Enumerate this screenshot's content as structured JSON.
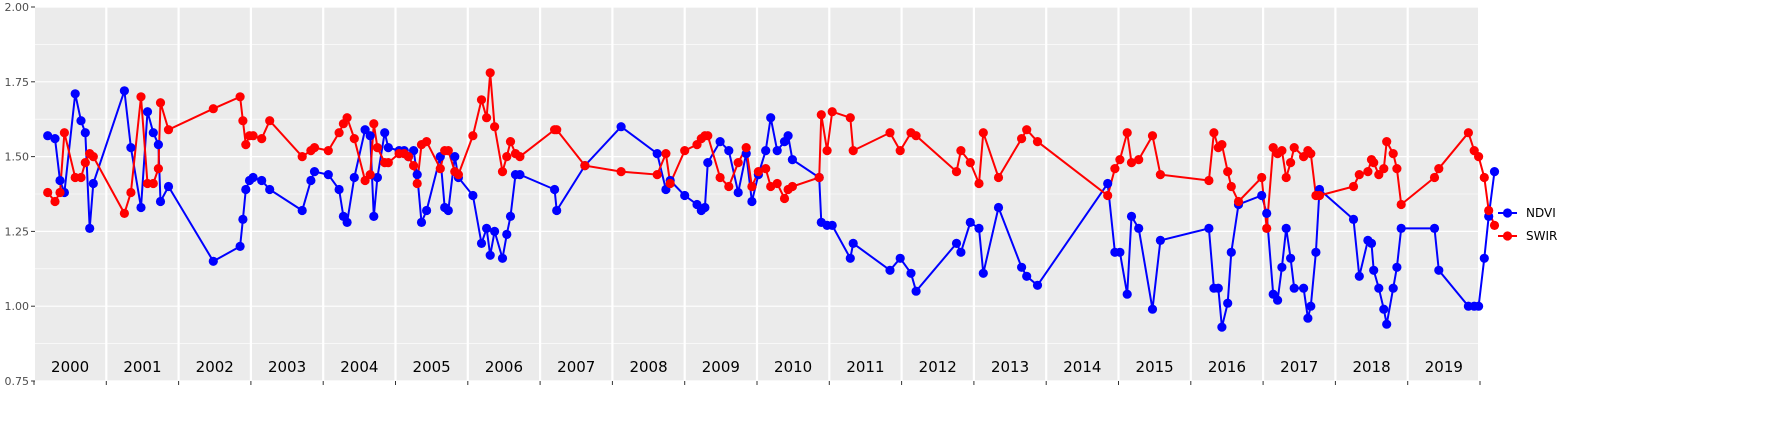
{
  "colors": {
    "panel_bg": "#EBEBEB",
    "grid": "#FFFFFF",
    "ndvi": "#0000FF",
    "swir": "#FF0000",
    "axis_text": "#4D4D4D"
  },
  "chart_data": {
    "type": "line",
    "title": "",
    "xlabel": "",
    "ylabel": "",
    "ylim": [
      0.75,
      2.0
    ],
    "xlim": [
      2000.0,
      2020.0
    ],
    "yticks": [
      "0.75",
      "1.00",
      "1.25",
      "1.50",
      "1.75",
      "2.00"
    ],
    "year_labels": [
      "2000",
      "2001",
      "2002",
      "2003",
      "2004",
      "2005",
      "2006",
      "2007",
      "2008",
      "2009",
      "2010",
      "2011",
      "2012",
      "2013",
      "2014",
      "2015",
      "2016",
      "2017",
      "2018",
      "2019"
    ],
    "grid": true,
    "legend_position": "right",
    "series": [
      {
        "name": "NDVI",
        "color": "#0000FF",
        "points": [
          [
            2000.19,
            1.57
          ],
          [
            2000.29,
            1.56
          ],
          [
            2000.36,
            1.42
          ],
          [
            2000.42,
            1.38
          ],
          [
            2000.57,
            1.71
          ],
          [
            2000.65,
            1.62
          ],
          [
            2000.71,
            1.58
          ],
          [
            2000.77,
            1.26
          ],
          [
            2000.82,
            1.41
          ],
          [
            2001.25,
            1.72
          ],
          [
            2001.34,
            1.53
          ],
          [
            2001.48,
            1.33
          ],
          [
            2001.57,
            1.65
          ],
          [
            2001.65,
            1.58
          ],
          [
            2001.72,
            1.54
          ],
          [
            2001.75,
            1.35
          ],
          [
            2001.86,
            1.4
          ],
          [
            2002.48,
            1.15
          ],
          [
            2002.85,
            1.2
          ],
          [
            2002.89,
            1.29
          ],
          [
            2002.93,
            1.39
          ],
          [
            2002.98,
            1.42
          ],
          [
            2003.03,
            1.43
          ],
          [
            2003.15,
            1.42
          ],
          [
            2003.26,
            1.39
          ],
          [
            2003.71,
            1.32
          ],
          [
            2003.83,
            1.42
          ],
          [
            2003.88,
            1.45
          ],
          [
            2004.07,
            1.44
          ],
          [
            2004.22,
            1.39
          ],
          [
            2004.28,
            1.3
          ],
          [
            2004.33,
            1.28
          ],
          [
            2004.43,
            1.43
          ],
          [
            2004.58,
            1.59
          ],
          [
            2004.65,
            1.57
          ],
          [
            2004.7,
            1.3
          ],
          [
            2004.75,
            1.43
          ],
          [
            2004.85,
            1.58
          ],
          [
            2004.9,
            1.53
          ],
          [
            2005.05,
            1.52
          ],
          [
            2005.12,
            1.52
          ],
          [
            2005.18,
            1.5
          ],
          [
            2005.25,
            1.52
          ],
          [
            2005.3,
            1.44
          ],
          [
            2005.36,
            1.28
          ],
          [
            2005.43,
            1.32
          ],
          [
            2005.62,
            1.5
          ],
          [
            2005.68,
            1.33
          ],
          [
            2005.73,
            1.32
          ],
          [
            2005.82,
            1.5
          ],
          [
            2005.87,
            1.43
          ],
          [
            2006.07,
            1.37
          ],
          [
            2006.19,
            1.21
          ],
          [
            2006.26,
            1.26
          ],
          [
            2006.31,
            1.17
          ],
          [
            2006.37,
            1.25
          ],
          [
            2006.48,
            1.16
          ],
          [
            2006.54,
            1.24
          ],
          [
            2006.59,
            1.3
          ],
          [
            2006.66,
            1.44
          ],
          [
            2006.72,
            1.44
          ],
          [
            2007.2,
            1.39
          ],
          [
            2007.23,
            1.32
          ],
          [
            2007.62,
            1.47
          ],
          [
            2008.12,
            1.6
          ],
          [
            2008.62,
            1.51
          ],
          [
            2008.74,
            1.39
          ],
          [
            2008.8,
            1.42
          ],
          [
            2009.0,
            1.37
          ],
          [
            2009.17,
            1.34
          ],
          [
            2009.23,
            1.32
          ],
          [
            2009.28,
            1.33
          ],
          [
            2009.32,
            1.48
          ],
          [
            2009.49,
            1.55
          ],
          [
            2009.61,
            1.52
          ],
          [
            2009.74,
            1.38
          ],
          [
            2009.85,
            1.51
          ],
          [
            2009.93,
            1.35
          ],
          [
            2010.02,
            1.44
          ],
          [
            2010.12,
            1.52
          ],
          [
            2010.19,
            1.63
          ],
          [
            2010.28,
            1.52
          ],
          [
            2010.38,
            1.55
          ],
          [
            2010.43,
            1.57
          ],
          [
            2010.49,
            1.49
          ],
          [
            2010.86,
            1.43
          ],
          [
            2010.89,
            1.28
          ],
          [
            2010.97,
            1.27
          ],
          [
            2011.04,
            1.27
          ],
          [
            2011.29,
            1.16
          ],
          [
            2011.33,
            1.21
          ],
          [
            2011.84,
            1.12
          ],
          [
            2011.98,
            1.16
          ],
          [
            2012.13,
            1.11
          ],
          [
            2012.2,
            1.05
          ],
          [
            2012.76,
            1.21
          ],
          [
            2012.82,
            1.18
          ],
          [
            2012.95,
            1.28
          ],
          [
            2013.07,
            1.26
          ],
          [
            2013.13,
            1.11
          ],
          [
            2013.34,
            1.33
          ],
          [
            2013.66,
            1.13
          ],
          [
            2013.73,
            1.1
          ],
          [
            2013.88,
            1.07
          ],
          [
            2014.85,
            1.41
          ],
          [
            2014.95,
            1.18
          ],
          [
            2015.02,
            1.18
          ],
          [
            2015.12,
            1.04
          ],
          [
            2015.18,
            1.3
          ],
          [
            2015.28,
            1.26
          ],
          [
            2015.47,
            0.99
          ],
          [
            2015.58,
            1.22
          ],
          [
            2016.25,
            1.26
          ],
          [
            2016.32,
            1.06
          ],
          [
            2016.38,
            1.06
          ],
          [
            2016.43,
            0.93
          ],
          [
            2016.51,
            1.01
          ],
          [
            2016.56,
            1.18
          ],
          [
            2016.66,
            1.34
          ],
          [
            2016.98,
            1.37
          ],
          [
            2017.05,
            1.31
          ],
          [
            2017.14,
            1.04
          ],
          [
            2017.2,
            1.02
          ],
          [
            2017.26,
            1.13
          ],
          [
            2017.32,
            1.26
          ],
          [
            2017.38,
            1.16
          ],
          [
            2017.43,
            1.06
          ],
          [
            2017.56,
            1.06
          ],
          [
            2017.62,
            0.96
          ],
          [
            2017.66,
            1.0
          ],
          [
            2017.73,
            1.18
          ],
          [
            2017.78,
            1.39
          ],
          [
            2018.25,
            1.29
          ],
          [
            2018.33,
            1.1
          ],
          [
            2018.45,
            1.22
          ],
          [
            2018.5,
            1.21
          ],
          [
            2018.53,
            1.12
          ],
          [
            2018.6,
            1.06
          ],
          [
            2018.67,
            0.99
          ],
          [
            2018.71,
            0.94
          ],
          [
            2018.8,
            1.06
          ],
          [
            2018.85,
            1.13
          ],
          [
            2018.91,
            1.26
          ],
          [
            2019.37,
            1.26
          ],
          [
            2019.43,
            1.12
          ],
          [
            2019.84,
            1.0
          ],
          [
            2019.92,
            1.0
          ],
          [
            2019.98,
            1.0
          ],
          [
            2020.06,
            1.16
          ],
          [
            2020.12,
            1.3
          ],
          [
            2020.2,
            1.45
          ]
        ]
      },
      {
        "name": "SWIR",
        "color": "#FF0000",
        "points": [
          [
            2000.19,
            1.38
          ],
          [
            2000.29,
            1.35
          ],
          [
            2000.36,
            1.38
          ],
          [
            2000.42,
            1.58
          ],
          [
            2000.57,
            1.43
          ],
          [
            2000.65,
            1.43
          ],
          [
            2000.71,
            1.48
          ],
          [
            2000.77,
            1.51
          ],
          [
            2000.82,
            1.5
          ],
          [
            2001.25,
            1.31
          ],
          [
            2001.34,
            1.38
          ],
          [
            2001.48,
            1.7
          ],
          [
            2001.57,
            1.41
          ],
          [
            2001.65,
            1.41
          ],
          [
            2001.72,
            1.46
          ],
          [
            2001.75,
            1.68
          ],
          [
            2001.86,
            1.59
          ],
          [
            2002.48,
            1.66
          ],
          [
            2002.85,
            1.7
          ],
          [
            2002.89,
            1.62
          ],
          [
            2002.93,
            1.54
          ],
          [
            2002.98,
            1.57
          ],
          [
            2003.03,
            1.57
          ],
          [
            2003.15,
            1.56
          ],
          [
            2003.26,
            1.62
          ],
          [
            2003.71,
            1.5
          ],
          [
            2003.83,
            1.52
          ],
          [
            2003.88,
            1.53
          ],
          [
            2004.07,
            1.52
          ],
          [
            2004.22,
            1.58
          ],
          [
            2004.28,
            1.61
          ],
          [
            2004.33,
            1.63
          ],
          [
            2004.43,
            1.56
          ],
          [
            2004.58,
            1.42
          ],
          [
            2004.65,
            1.44
          ],
          [
            2004.7,
            1.61
          ],
          [
            2004.75,
            1.53
          ],
          [
            2004.85,
            1.48
          ],
          [
            2004.9,
            1.48
          ],
          [
            2005.05,
            1.51
          ],
          [
            2005.12,
            1.51
          ],
          [
            2005.18,
            1.5
          ],
          [
            2005.25,
            1.47
          ],
          [
            2005.3,
            1.41
          ],
          [
            2005.36,
            1.54
          ],
          [
            2005.43,
            1.55
          ],
          [
            2005.62,
            1.46
          ],
          [
            2005.68,
            1.52
          ],
          [
            2005.73,
            1.52
          ],
          [
            2005.82,
            1.45
          ],
          [
            2005.87,
            1.44
          ],
          [
            2006.07,
            1.57
          ],
          [
            2006.19,
            1.69
          ],
          [
            2006.26,
            1.63
          ],
          [
            2006.31,
            1.78
          ],
          [
            2006.37,
            1.6
          ],
          [
            2006.48,
            1.45
          ],
          [
            2006.54,
            1.5
          ],
          [
            2006.59,
            1.55
          ],
          [
            2006.66,
            1.51
          ],
          [
            2006.72,
            1.5
          ],
          [
            2007.2,
            1.59
          ],
          [
            2007.23,
            1.59
          ],
          [
            2007.62,
            1.47
          ],
          [
            2008.12,
            1.45
          ],
          [
            2008.62,
            1.44
          ],
          [
            2008.74,
            1.51
          ],
          [
            2008.8,
            1.41
          ],
          [
            2009.0,
            1.52
          ],
          [
            2009.17,
            1.54
          ],
          [
            2009.23,
            1.56
          ],
          [
            2009.28,
            1.57
          ],
          [
            2009.32,
            1.57
          ],
          [
            2009.49,
            1.43
          ],
          [
            2009.61,
            1.4
          ],
          [
            2009.74,
            1.48
          ],
          [
            2009.85,
            1.53
          ],
          [
            2009.93,
            1.4
          ],
          [
            2010.02,
            1.45
          ],
          [
            2010.12,
            1.46
          ],
          [
            2010.19,
            1.4
          ],
          [
            2010.28,
            1.41
          ],
          [
            2010.38,
            1.36
          ],
          [
            2010.43,
            1.39
          ],
          [
            2010.49,
            1.4
          ],
          [
            2010.86,
            1.43
          ],
          [
            2010.89,
            1.64
          ],
          [
            2010.97,
            1.52
          ],
          [
            2011.04,
            1.65
          ],
          [
            2011.29,
            1.63
          ],
          [
            2011.33,
            1.52
          ],
          [
            2011.84,
            1.58
          ],
          [
            2011.98,
            1.52
          ],
          [
            2012.13,
            1.58
          ],
          [
            2012.2,
            1.57
          ],
          [
            2012.76,
            1.45
          ],
          [
            2012.82,
            1.52
          ],
          [
            2012.95,
            1.48
          ],
          [
            2013.07,
            1.41
          ],
          [
            2013.13,
            1.58
          ],
          [
            2013.34,
            1.43
          ],
          [
            2013.66,
            1.56
          ],
          [
            2013.73,
            1.59
          ],
          [
            2013.88,
            1.55
          ],
          [
            2014.85,
            1.37
          ],
          [
            2014.95,
            1.46
          ],
          [
            2015.02,
            1.49
          ],
          [
            2015.12,
            1.58
          ],
          [
            2015.18,
            1.48
          ],
          [
            2015.28,
            1.49
          ],
          [
            2015.47,
            1.57
          ],
          [
            2015.58,
            1.44
          ],
          [
            2016.25,
            1.42
          ],
          [
            2016.32,
            1.58
          ],
          [
            2016.38,
            1.53
          ],
          [
            2016.43,
            1.54
          ],
          [
            2016.51,
            1.45
          ],
          [
            2016.56,
            1.4
          ],
          [
            2016.66,
            1.35
          ],
          [
            2016.98,
            1.43
          ],
          [
            2017.05,
            1.26
          ],
          [
            2017.14,
            1.53
          ],
          [
            2017.2,
            1.51
          ],
          [
            2017.26,
            1.52
          ],
          [
            2017.32,
            1.43
          ],
          [
            2017.38,
            1.48
          ],
          [
            2017.43,
            1.53
          ],
          [
            2017.56,
            1.5
          ],
          [
            2017.62,
            1.52
          ],
          [
            2017.66,
            1.51
          ],
          [
            2017.73,
            1.37
          ],
          [
            2017.78,
            1.37
          ],
          [
            2018.25,
            1.4
          ],
          [
            2018.33,
            1.44
          ],
          [
            2018.45,
            1.45
          ],
          [
            2018.5,
            1.49
          ],
          [
            2018.53,
            1.48
          ],
          [
            2018.6,
            1.44
          ],
          [
            2018.67,
            1.46
          ],
          [
            2018.71,
            1.55
          ],
          [
            2018.8,
            1.51
          ],
          [
            2018.85,
            1.46
          ],
          [
            2018.91,
            1.34
          ],
          [
            2019.37,
            1.43
          ],
          [
            2019.43,
            1.46
          ],
          [
            2019.84,
            1.58
          ],
          [
            2019.92,
            1.52
          ],
          [
            2019.98,
            1.5
          ],
          [
            2020.06,
            1.43
          ],
          [
            2020.12,
            1.32
          ],
          [
            2020.2,
            1.27
          ]
        ]
      }
    ]
  }
}
